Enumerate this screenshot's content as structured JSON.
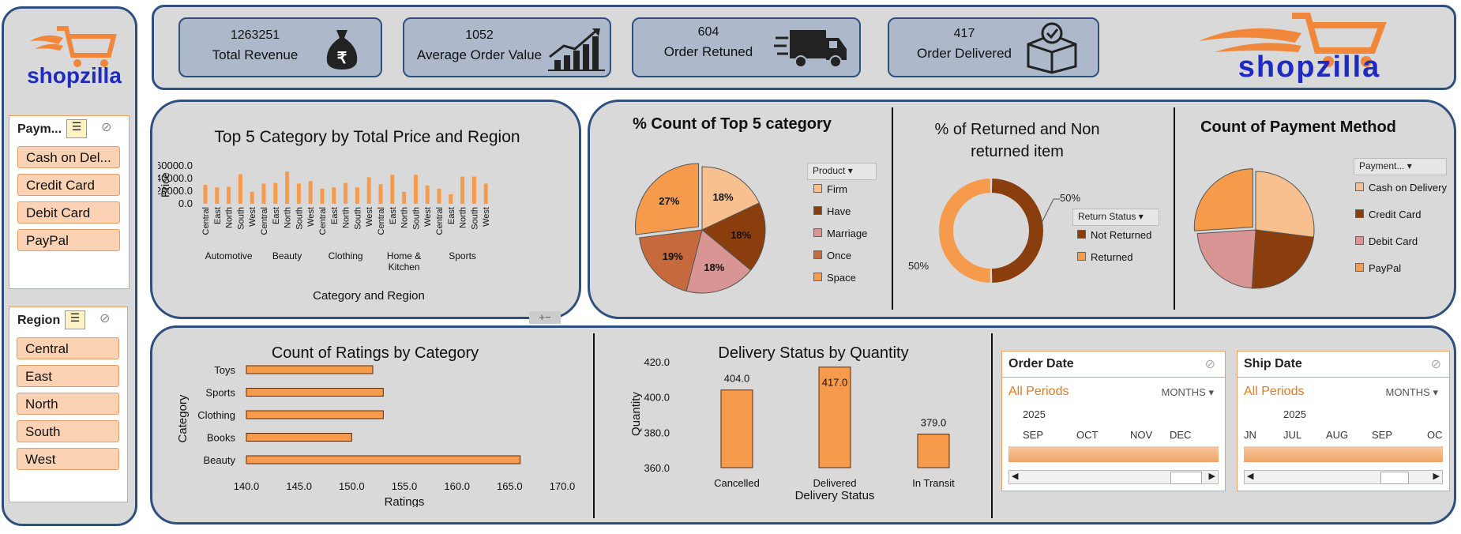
{
  "brand": {
    "name": "shopzilla"
  },
  "kpis": [
    {
      "value": "1263251",
      "label": "Total Revenue",
      "icon": "money-bag-rupee-icon"
    },
    {
      "value": "1052",
      "label": "Average Order Value",
      "icon": "growth-chart-icon"
    },
    {
      "value": "604",
      "label": "Order Retuned",
      "icon": "delivery-truck-icon"
    },
    {
      "value": "417",
      "label": "Order Delivered",
      "icon": "delivered-box-icon"
    }
  ],
  "slicers": {
    "payment": {
      "header": "Paym...",
      "items": [
        "Cash on Del...",
        "Credit Card",
        "Debit Card",
        "PayPal"
      ]
    },
    "region": {
      "header": "Region",
      "items": [
        "Central",
        "East",
        "North",
        "South",
        "West"
      ]
    }
  },
  "colors": {
    "orange": "#f59b4b",
    "dark_brown": "#8b3e0d",
    "peach": "#f8c08f",
    "rose": "#d99594",
    "rust": "#c66a3e",
    "panel": "#d9d9d9",
    "border": "#2f4f7f"
  },
  "timelines": [
    {
      "header": "Order Date",
      "all": "All Periods",
      "level": "MONTHS",
      "year": "2025",
      "months": [
        "SEP",
        "OCT",
        "NOV",
        "DEC"
      ]
    },
    {
      "header": "Ship Date",
      "all": "All Periods",
      "level": "MONTHS",
      "year": "2025",
      "months": [
        "JN",
        "JUL",
        "AUG",
        "SEP",
        "OC"
      ]
    }
  ],
  "chart_data": [
    {
      "type": "bar",
      "title": "Top 5 Category by Total Price and Region",
      "xlabel": "Category and Region",
      "ylabel": "Price",
      "ylim": [
        0,
        60000
      ],
      "yticks": [
        "60000.0",
        "40000.0",
        "20000.0",
        "0.0"
      ],
      "groups": [
        "Automotive",
        "Beauty",
        "Clothing",
        "Home & Kitchen",
        "Sports"
      ],
      "categories": [
        "Central",
        "East",
        "North",
        "South",
        "West",
        "Central",
        "East",
        "North",
        "South",
        "West",
        "Central",
        "East",
        "North",
        "South",
        "West",
        "Central",
        "East",
        "North",
        "South",
        "West",
        "Central",
        "East",
        "North",
        "South",
        "West"
      ],
      "values": [
        30000,
        26000,
        27000,
        47000,
        19000,
        32000,
        33000,
        51000,
        32000,
        36000,
        24000,
        26000,
        33000,
        26000,
        42000,
        31000,
        46000,
        19000,
        46000,
        29000,
        24000,
        15000,
        43000,
        43000,
        32000
      ]
    },
    {
      "type": "pie",
      "title": "% Count of Top 5 category",
      "legend_title": "Product",
      "labels": [
        "Firm",
        "Have",
        "Marriage",
        "Once",
        "Space"
      ],
      "values": [
        18,
        18,
        18,
        19,
        27
      ],
      "data_labels": [
        "18%",
        "18%",
        "18%",
        "19%",
        "27%"
      ]
    },
    {
      "type": "pie",
      "title": "% of Returned and Non returned item",
      "legend_title": "Return Status",
      "labels": [
        "Not Returned",
        "Returned"
      ],
      "values": [
        50,
        50
      ],
      "data_labels": [
        "50%",
        "50%"
      ]
    },
    {
      "type": "pie",
      "title": "Count of Payment Method",
      "legend_title": "Payment...",
      "labels": [
        "Cash on Delivery",
        "Credit Card",
        "Debit Card",
        "PayPal"
      ],
      "values": [
        27,
        24,
        23,
        26
      ]
    },
    {
      "type": "bar",
      "orientation": "horizontal",
      "title": "Count of Ratings by Category",
      "xlabel": "Ratings",
      "ylabel": "Category",
      "categories": [
        "Toys",
        "Sports",
        "Clothing",
        "Books",
        "Beauty"
      ],
      "values": [
        152,
        153,
        153,
        150,
        166
      ],
      "xlim": [
        140,
        170
      ],
      "xticks": [
        "140.0",
        "145.0",
        "150.0",
        "155.0",
        "160.0",
        "165.0",
        "170.0"
      ]
    },
    {
      "type": "bar",
      "title": "Delivery Status by Quantity",
      "xlabel": "Delivery  Status",
      "ylabel": "Quantity",
      "categories": [
        "Cancelled",
        "Delivered",
        "In Transit"
      ],
      "values": [
        404,
        417,
        379
      ],
      "data_labels": [
        "404.0",
        "417.0",
        "379.0"
      ],
      "ylim": [
        360,
        420
      ],
      "yticks": [
        "420.0",
        "400.0",
        "380.0",
        "360.0"
      ]
    }
  ]
}
